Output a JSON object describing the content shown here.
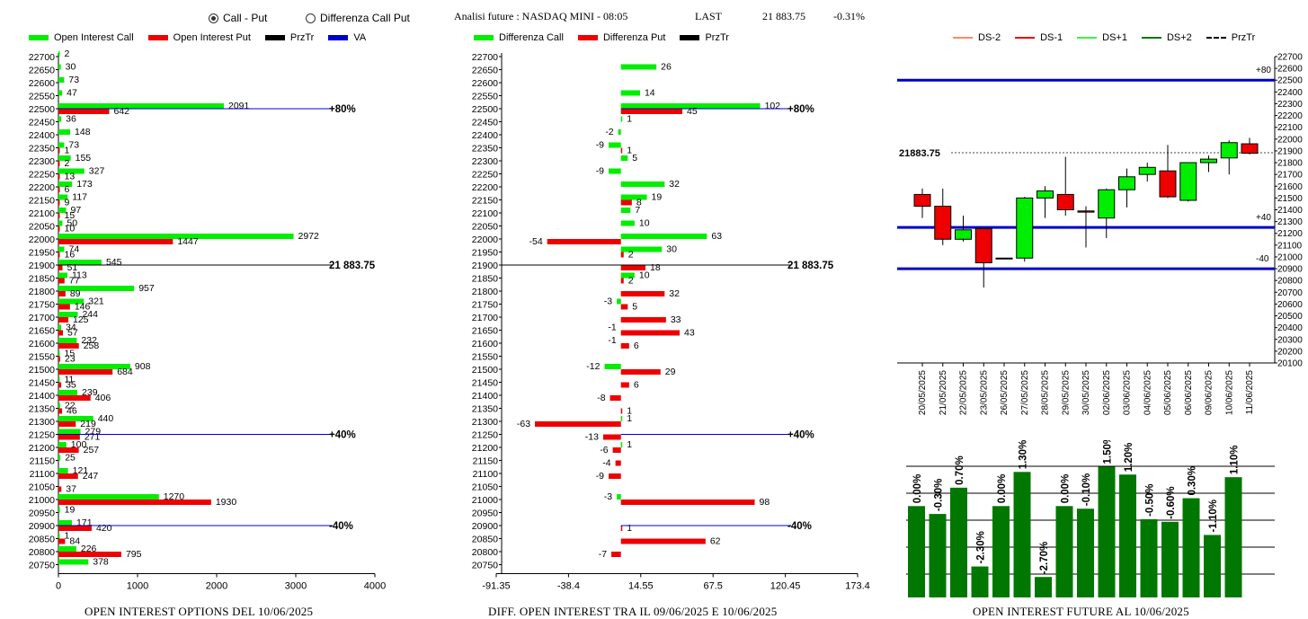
{
  "header": {
    "radio_call_put": "Call - Put",
    "radio_diff": "Differenza Call Put",
    "title": "Analisi future : NASDAQ MINI - 08:05",
    "last_label": "LAST",
    "last_value": "21 883.75",
    "change": "-0.31%"
  },
  "legend1": {
    "call": "Open Interest Call",
    "put": "Open Interest Put",
    "prztr": "PrzTr",
    "va": "VA"
  },
  "legend2": {
    "call": "Differenza Call",
    "put": "Differenza Put",
    "prztr": "PrzTr"
  },
  "legend3": {
    "ds_m2": "DS-2",
    "ds_m1": "DS-1",
    "ds_p1": "DS+1",
    "ds_p2": "DS+2",
    "prztr": "PrzTr"
  },
  "captions": {
    "chart1": "OPEN INTEREST OPTIONS DEL 10/06/2025",
    "chart2": "DIFF. OPEN INTEREST TRA IL 09/06/2025 E 10/06/2025",
    "chart3": "OPEN INTEREST FUTURE AL 10/06/2025"
  },
  "colors": {
    "call": "#00ee00",
    "put": "#ee0000",
    "blue": "#0000cc",
    "dark_green": "#007700"
  },
  "chart_data": [
    {
      "type": "bar",
      "orientation": "horizontal",
      "strikes": [
        22700,
        22650,
        22600,
        22550,
        22500,
        22450,
        22400,
        22350,
        22300,
        22250,
        22200,
        22150,
        22100,
        22050,
        22000,
        21950,
        21900,
        21850,
        21800,
        21750,
        21700,
        21650,
        21600,
        21550,
        21500,
        21450,
        21400,
        21350,
        21300,
        21250,
        21200,
        21150,
        21100,
        21050,
        21000,
        20950,
        20900,
        20850,
        20800,
        20750
      ],
      "series": [
        {
          "name": "Open Interest Call",
          "values": [
            2,
            30,
            73,
            47,
            2091,
            36,
            148,
            73,
            155,
            327,
            173,
            117,
            97,
            50,
            2972,
            74,
            545,
            113,
            957,
            321,
            244,
            34,
            232,
            15,
            908,
            11,
            239,
            22,
            440,
            279,
            100,
            25,
            121,
            null,
            1270,
            19,
            171,
            1,
            226,
            378
          ]
        },
        {
          "name": "Open Interest Put",
          "values": [
            null,
            null,
            null,
            null,
            642,
            null,
            null,
            1,
            2,
            13,
            6,
            9,
            15,
            10,
            1447,
            16,
            51,
            77,
            89,
            146,
            125,
            57,
            258,
            23,
            684,
            35,
            406,
            46,
            219,
            271,
            257,
            null,
            247,
            37,
            1930,
            null,
            420,
            84,
            795,
            null
          ]
        }
      ],
      "xlim": [
        0,
        4000
      ],
      "x_ticks": [
        "0",
        "1000",
        "2000",
        "3000",
        "4000"
      ],
      "reference_lines": [
        {
          "strike": 22500,
          "label": "+80%"
        },
        {
          "strike": 21900,
          "label": "21 883.75"
        },
        {
          "strike": 21250,
          "label": "+40%"
        },
        {
          "strike": 20900,
          "label": "-40%"
        }
      ]
    },
    {
      "type": "bar",
      "orientation": "horizontal",
      "strikes": [
        22700,
        22650,
        22600,
        22550,
        22500,
        22450,
        22400,
        22350,
        22300,
        22250,
        22200,
        22150,
        22100,
        22050,
        22000,
        21950,
        21900,
        21850,
        21800,
        21750,
        21700,
        21650,
        21600,
        21550,
        21500,
        21450,
        21400,
        21350,
        21300,
        21250,
        21200,
        21150,
        21100,
        21050,
        21000,
        20950,
        20900,
        20850,
        20800,
        20750
      ],
      "series": [
        {
          "name": "Differenza Call",
          "values": [
            null,
            26,
            null,
            14,
            102,
            1,
            -2,
            -9,
            5,
            -9,
            32,
            19,
            7,
            10,
            63,
            30,
            null,
            10,
            null,
            -3,
            null,
            null,
            null,
            null,
            -12,
            null,
            null,
            null,
            1,
            null,
            1,
            null,
            null,
            null,
            -3,
            null,
            null,
            null,
            null,
            null
          ]
        },
        {
          "name": "Differenza Put",
          "values": [
            null,
            null,
            null,
            null,
            45,
            null,
            null,
            1,
            null,
            null,
            null,
            8,
            null,
            null,
            -54,
            2,
            18,
            2,
            32,
            5,
            33,
            43,
            6,
            null,
            29,
            6,
            -8,
            1,
            -63,
            -13,
            -6,
            -4,
            -9,
            null,
            98,
            null,
            1,
            62,
            -7,
            null
          ]
        }
      ],
      "extra_labels": [
        {
          "strike": 21650,
          "text": "-1"
        },
        {
          "strike": 21600,
          "text": "-1"
        }
      ],
      "xlim": [
        -91.35,
        173.4
      ],
      "x_ticks": [
        "-91.35",
        "-38.4",
        "14.55",
        "67.5",
        "120.45",
        "173.4"
      ],
      "reference_lines": [
        {
          "strike": 22500,
          "label": "+80%"
        },
        {
          "strike": 21900,
          "label": "21 883.75"
        },
        {
          "strike": 21250,
          "label": "+40%"
        },
        {
          "strike": 20900,
          "label": "-40%"
        }
      ]
    },
    {
      "type": "candlestick",
      "dates": [
        "20/05/2025",
        "21/05/2025",
        "22/05/2025",
        "23/05/2025",
        "26/05/2025",
        "27/05/2025",
        "28/05/2025",
        "29/05/2025",
        "30/05/2025",
        "02/06/2025",
        "03/06/2025",
        "04/06/2025",
        "05/06/2025",
        "06/06/2025",
        "09/06/2025",
        "10/06/2025",
        "11/06/2025"
      ],
      "candles": [
        {
          "o": 21530,
          "h": 21580,
          "l": 21330,
          "c": 21430
        },
        {
          "o": 21430,
          "h": 21580,
          "l": 21100,
          "c": 21150
        },
        {
          "o": 21150,
          "h": 21350,
          "l": 21130,
          "c": 21230
        },
        {
          "o": 21240,
          "h": 21240,
          "l": 20740,
          "c": 20950
        },
        {
          "o": 20990,
          "h": 20990,
          "l": 20990,
          "c": 20990
        },
        {
          "o": 20990,
          "h": 21510,
          "l": 20960,
          "c": 21500
        },
        {
          "o": 21500,
          "h": 21600,
          "l": 21330,
          "c": 21560
        },
        {
          "o": 21530,
          "h": 21850,
          "l": 21350,
          "c": 21400
        },
        {
          "o": 21390,
          "h": 21430,
          "l": 21080,
          "c": 21380
        },
        {
          "o": 21330,
          "h": 21580,
          "l": 21160,
          "c": 21570
        },
        {
          "o": 21570,
          "h": 21750,
          "l": 21420,
          "c": 21680
        },
        {
          "o": 21700,
          "h": 21800,
          "l": 21640,
          "c": 21760
        },
        {
          "o": 21730,
          "h": 21950,
          "l": 21500,
          "c": 21510
        },
        {
          "o": 21480,
          "h": 21800,
          "l": 21470,
          "c": 21800
        },
        {
          "o": 21800,
          "h": 21860,
          "l": 21720,
          "c": 21830
        },
        {
          "o": 21840,
          "h": 21990,
          "l": 21700,
          "c": 21970
        },
        {
          "o": 21960,
          "h": 22010,
          "l": 21870,
          "c": 21880
        }
      ],
      "ylim": [
        20100,
        22700
      ],
      "y_ticks": [
        20100,
        20200,
        20300,
        20400,
        20500,
        20600,
        20700,
        20800,
        20900,
        21000,
        21100,
        21200,
        21300,
        21400,
        21500,
        21600,
        21700,
        21800,
        21900,
        22000,
        22100,
        22200,
        22300,
        22400,
        22500,
        22600,
        22700
      ],
      "last_label": "21883.75",
      "last_value": 21883.75,
      "levels": [
        {
          "value": 22500,
          "label": "+80"
        },
        {
          "value": 21250,
          "label": "+40"
        },
        {
          "value": 20900,
          "label": "-40"
        }
      ]
    },
    {
      "type": "bar",
      "labels": [
        "0.00%",
        "-0.30%",
        "0.70%",
        "-2.30%",
        "0.00%",
        "1.30%",
        "-2.70%",
        "0.00%",
        "-0.10%",
        "1.50%",
        "1.20%",
        "-0.50%",
        "-0.60%",
        "0.30%",
        "-1.10%",
        "1.10%"
      ],
      "values": [
        0.0,
        -0.3,
        0.7,
        -2.3,
        0.0,
        1.3,
        -2.7,
        0.0,
        -0.1,
        1.5,
        1.2,
        -0.5,
        -0.6,
        0.3,
        -1.1,
        1.1
      ]
    }
  ]
}
